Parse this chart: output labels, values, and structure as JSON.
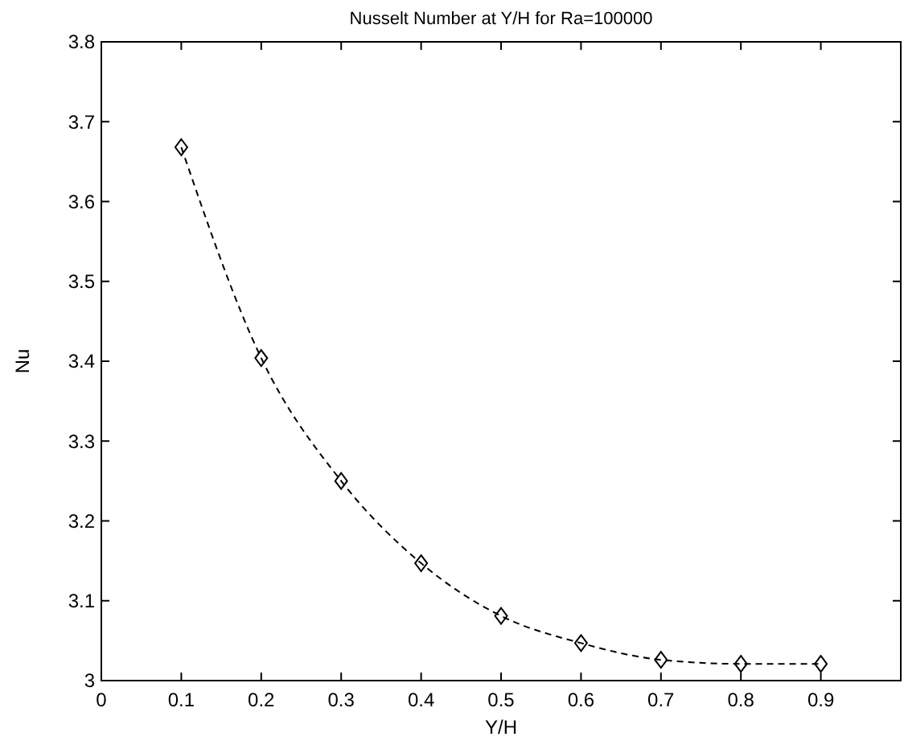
{
  "chart_data": {
    "type": "line",
    "title": "Nusselt Number at Y/H for Ra=100000",
    "xlabel": "Y/H",
    "ylabel": "Nu",
    "x": [
      0.1,
      0.2,
      0.3,
      0.4,
      0.5,
      0.6,
      0.7,
      0.8,
      0.9
    ],
    "series": [
      {
        "color": "#000000",
        "values": [
          3.668,
          3.404,
          3.25,
          3.147,
          3.081,
          3.047,
          3.026,
          3.021,
          3.021
        ]
      }
    ],
    "xlim": [
      0,
      1
    ],
    "xticks": [
      0,
      0.1,
      0.2,
      0.3,
      0.4,
      0.5,
      0.6,
      0.7,
      0.8,
      0.9
    ],
    "ylim": [
      3,
      3.8
    ],
    "yticks": [
      3,
      3.1,
      3.2,
      3.3,
      3.4,
      3.5,
      3.6,
      3.7,
      3.8
    ],
    "grid": false,
    "marker": "diamond",
    "line_style": "dashed"
  }
}
